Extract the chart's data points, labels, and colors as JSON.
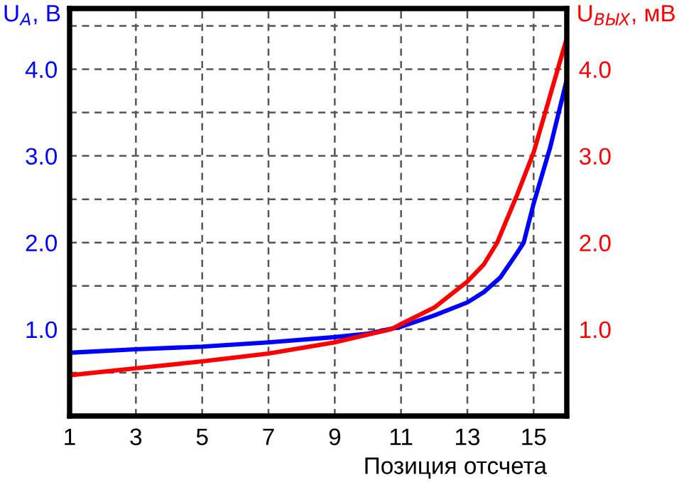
{
  "chart_data": {
    "type": "line",
    "xlabel": "Позиция отсчета",
    "ylabel": "U$_{А}$, В",
    "y2label": "U$_{ВЫХ}$, мВ",
    "xlim": [
      1,
      16
    ],
    "xticks": [
      1,
      3,
      5,
      7,
      9,
      11,
      13,
      15
    ],
    "ylim": [
      0,
      4.7
    ],
    "yticks": [
      {
        "value": 0.5,
        "label": null
      },
      {
        "value": 1.0,
        "label": "1.0"
      },
      {
        "value": 1.5,
        "label": null
      },
      {
        "value": 2.0,
        "label": "2.0"
      },
      {
        "value": 2.5,
        "label": null
      },
      {
        "value": 3.0,
        "label": "3.0"
      },
      {
        "value": 3.5,
        "label": null
      },
      {
        "value": 4.0,
        "label": "4.0"
      },
      {
        "value": 4.5,
        "label": null
      }
    ],
    "y2lim": [
      0,
      4.7
    ],
    "y2ticks": [
      {
        "value": 0.5,
        "label": null
      },
      {
        "value": 1.0,
        "label": "1.0"
      },
      {
        "value": 1.5,
        "label": null
      },
      {
        "value": 2.0,
        "label": "2.0"
      },
      {
        "value": 2.5,
        "label": null
      },
      {
        "value": 3.0,
        "label": "3.0"
      },
      {
        "value": 3.5,
        "label": null
      },
      {
        "value": 4.0,
        "label": "4.0"
      },
      {
        "value": 4.5,
        "label": null
      }
    ],
    "grid": true,
    "line_style": "solid",
    "marker": "none",
    "series": [
      {
        "color": "#0000ff",
        "x": [
          1,
          3,
          5,
          7,
          9,
          10,
          11,
          12,
          13,
          13.5,
          14,
          14.5,
          14.7,
          15,
          15.5,
          16
        ],
        "values": [
          0.73,
          0.77,
          0.8,
          0.85,
          0.91,
          0.95,
          1.03,
          1.16,
          1.31,
          1.43,
          1.6,
          1.88,
          2.0,
          2.45,
          3.1,
          3.88
        ]
      },
      {
        "color": "#ff0000",
        "axis": "y2",
        "x": [
          1,
          3,
          5,
          7,
          9,
          10,
          10.7,
          11,
          12,
          13,
          13.5,
          13.9,
          14.5,
          15,
          15.5,
          16
        ],
        "values": [
          0.47,
          0.55,
          0.63,
          0.72,
          0.85,
          0.94,
          1.0,
          1.06,
          1.25,
          1.55,
          1.75,
          2.0,
          2.55,
          3.04,
          3.7,
          4.36
        ]
      }
    ]
  }
}
